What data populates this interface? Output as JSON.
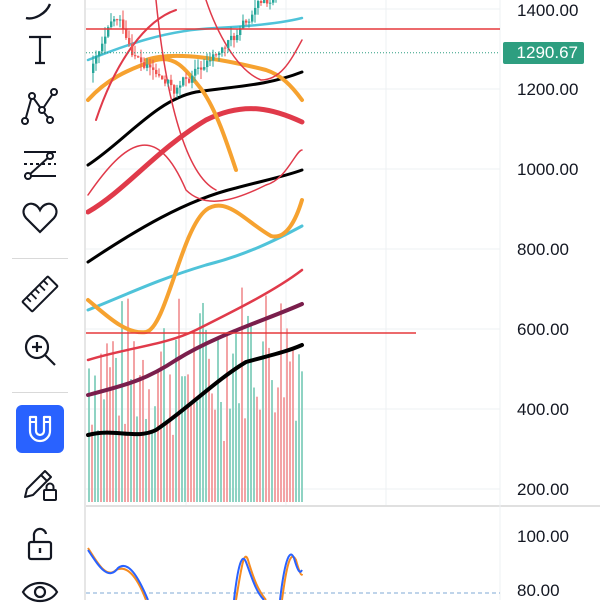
{
  "toolbar": {
    "items": [
      {
        "name": "curve-tool-icon"
      },
      {
        "name": "text-tool-icon",
        "glyph": "T"
      },
      {
        "name": "pattern-tool-icon"
      },
      {
        "name": "forecast-tool-icon"
      },
      {
        "name": "favorites-heart-icon"
      },
      {
        "name": "ruler-tool-icon"
      },
      {
        "name": "zoom-in-icon"
      },
      {
        "name": "magnet-mode-icon",
        "active": true,
        "color": "#2962ff"
      },
      {
        "name": "drawing-lock-pencil-icon"
      },
      {
        "name": "unlock-icon"
      },
      {
        "name": "visibility-eye-icon"
      }
    ]
  },
  "price_axis": {
    "labels": [
      "1400.00",
      "1200.00",
      "1000.00",
      "800.00",
      "600.00",
      "400.00",
      "200.00"
    ],
    "current_price": "1290.67",
    "current_price_color": "#2e9e80",
    "alert_line_color": "#e5383b",
    "alert_upper": 1350,
    "alert_lower": 590
  },
  "indicator_axis": {
    "labels": [
      "100.00",
      "80.00"
    ]
  },
  "chart_data": {
    "type": "candlestick",
    "title": "",
    "y_range": [
      160,
      1500
    ],
    "colors": {
      "up": "#26a69a",
      "down": "#ef5350",
      "ma_black": "#000000",
      "ma_orange": "#f6a230",
      "ma_cyan": "#4fc3d9",
      "ma_red": "#e03a4a",
      "ma_maroon": "#7a1e4c"
    }
  }
}
